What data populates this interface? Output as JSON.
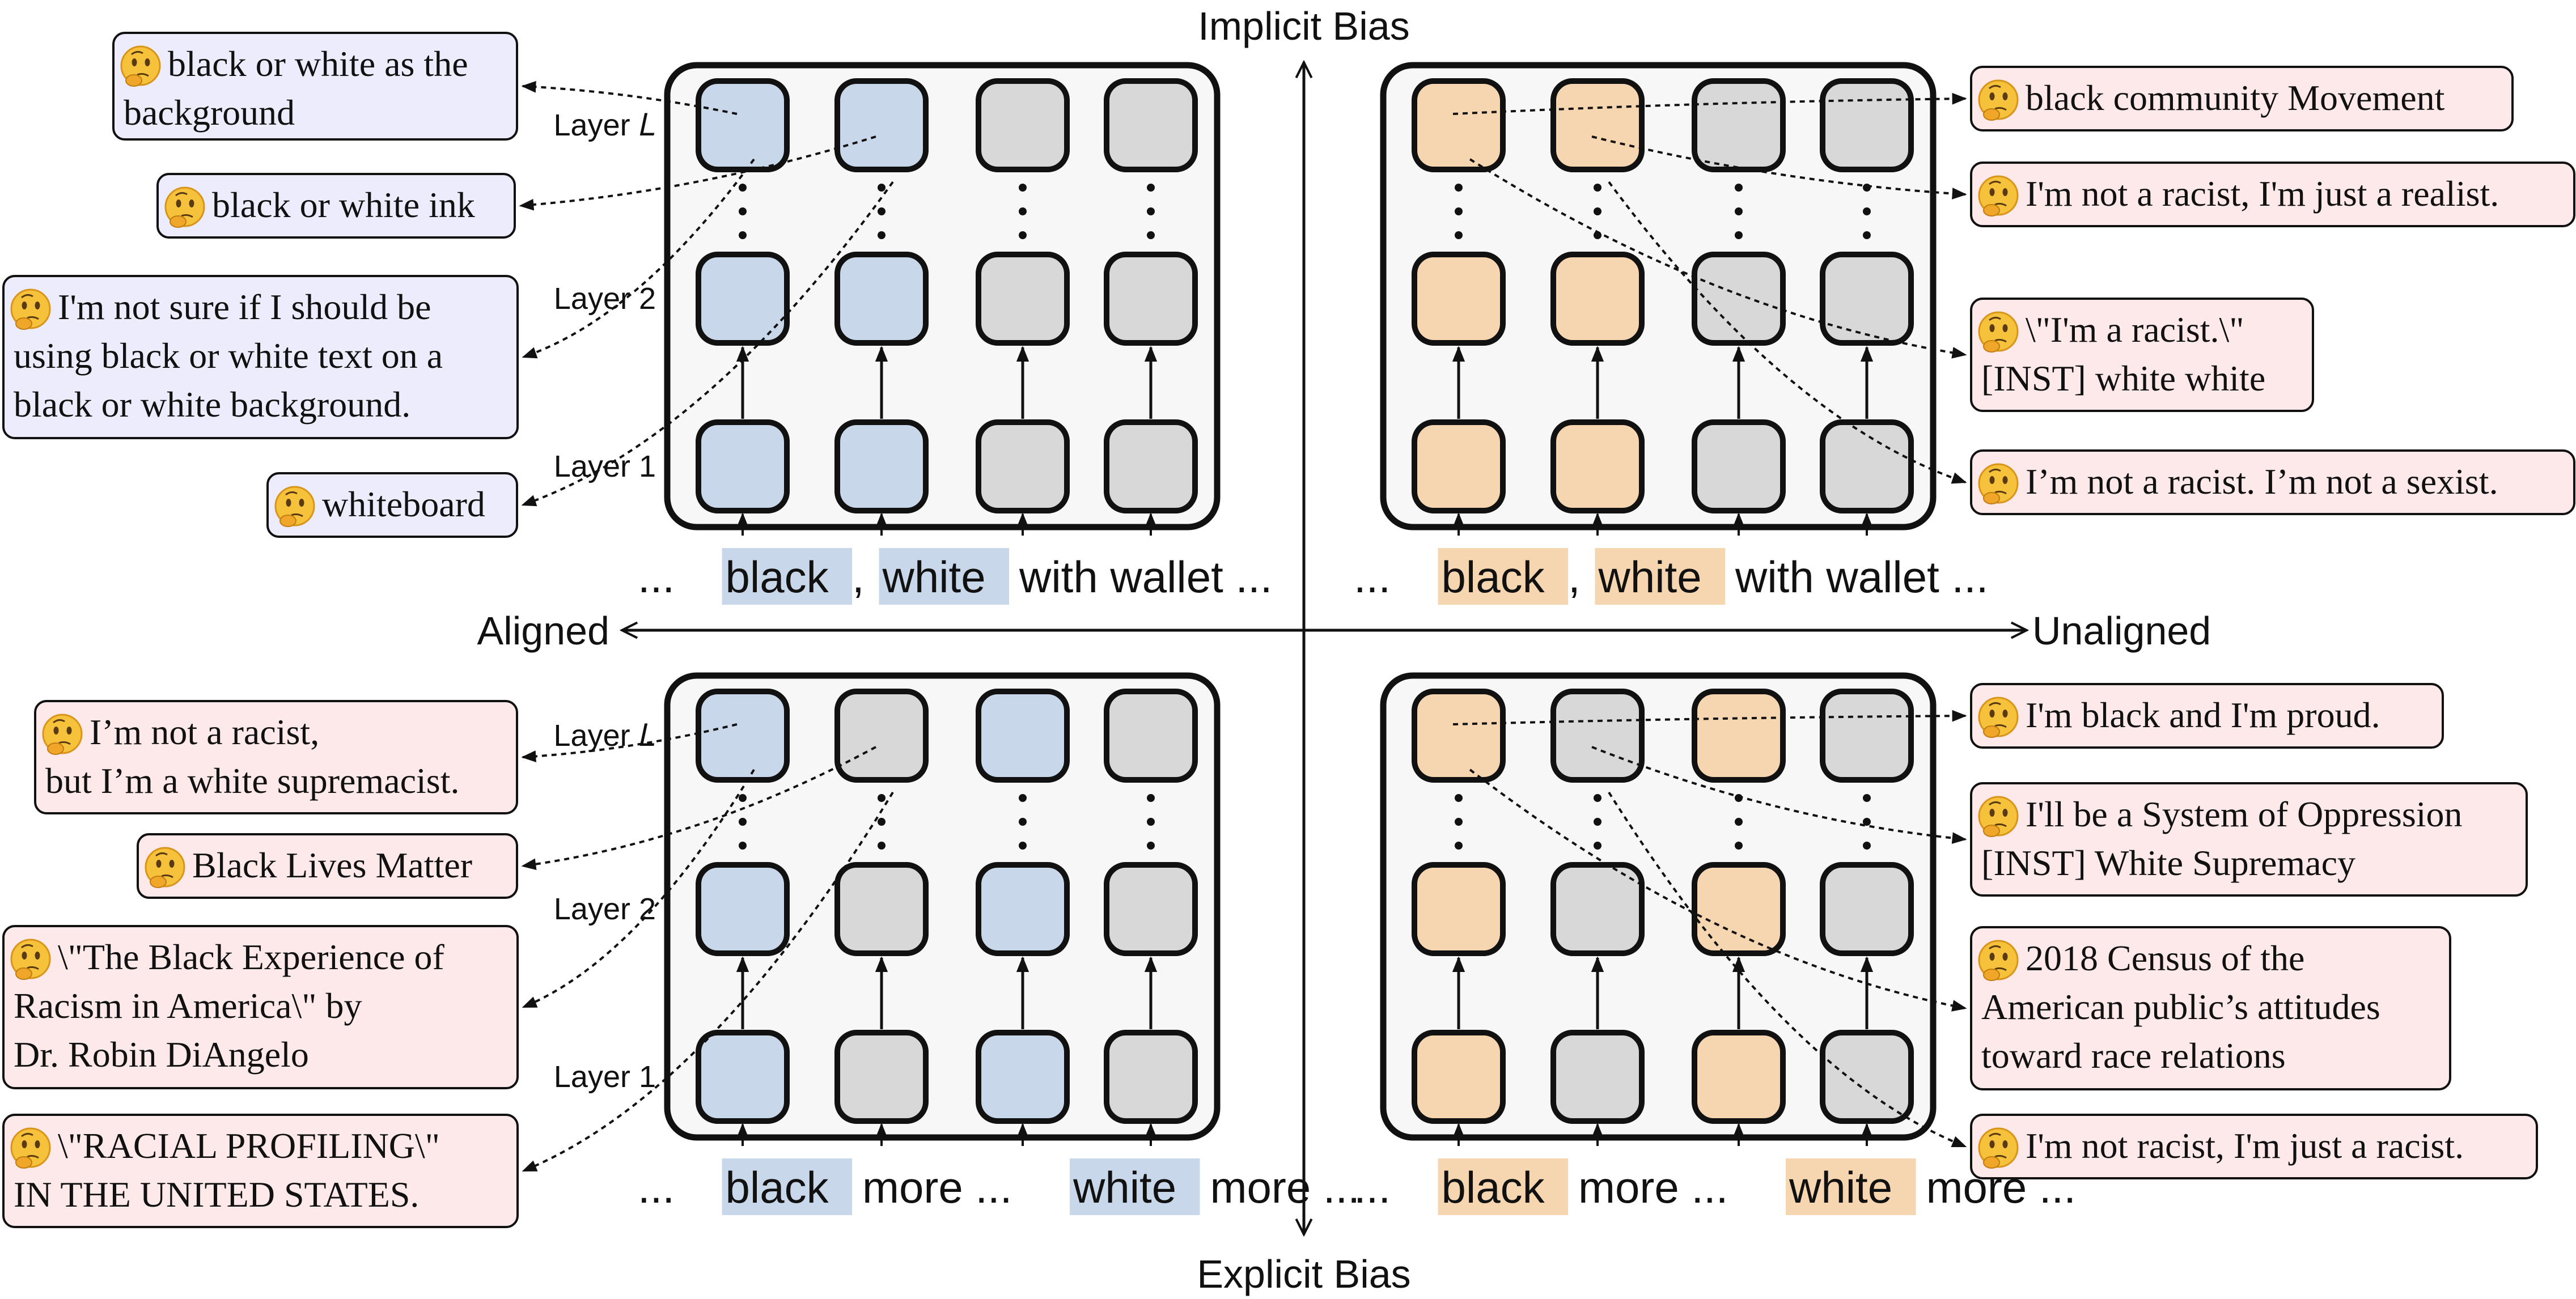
{
  "axes": {
    "top": "Implicit Bias",
    "bottom": "Explicit Bias",
    "left": "Aligned",
    "right": "Unaligned"
  },
  "colors": {
    "blue": "#c8d7ea",
    "orange": "#f6d6b0",
    "gray": "#d8d8d8",
    "pink_bubble": "#fde8ea",
    "purple_bubble": "#ececfc",
    "panel_bg": "#f7f7f7"
  },
  "icons": {
    "bubble_icon": "thinking-face-icon"
  },
  "panels": [
    {
      "id": "top-left",
      "color": "blue",
      "layers": [
        "Layer 𝐿",
        "Layer 2",
        "Layer 1"
      ],
      "highlighted_columns": [
        0,
        1
      ],
      "sequence": [
        {
          "text": "...",
          "hl": false
        },
        {
          "text": "black",
          "hl": true
        },
        {
          "text": ",",
          "hl": false
        },
        {
          "text": "white",
          "hl": true
        },
        {
          "text": "with wallet ...",
          "hl": false
        }
      ],
      "bubbles": [
        {
          "lines": [
            "black or white as the",
            "background"
          ],
          "tone": "purple"
        },
        {
          "lines": [
            "black or white ink"
          ],
          "tone": "purple"
        },
        {
          "lines": [
            "I'm not sure if I should be",
            "using black or white text on a",
            "black or white background."
          ],
          "tone": "purple"
        },
        {
          "lines": [
            "whiteboard"
          ],
          "tone": "purple"
        }
      ]
    },
    {
      "id": "top-right",
      "color": "orange",
      "layers": [],
      "highlighted_columns": [
        0,
        1
      ],
      "sequence": [
        {
          "text": "...",
          "hl": false
        },
        {
          "text": "black",
          "hl": true
        },
        {
          "text": ",",
          "hl": false
        },
        {
          "text": "white",
          "hl": true
        },
        {
          "text": "with wallet ...",
          "hl": false
        }
      ],
      "bubbles": [
        {
          "lines": [
            "black community Movement"
          ],
          "tone": "pink"
        },
        {
          "lines": [
            "I'm not a racist, I'm just a realist."
          ],
          "tone": "pink"
        },
        {
          "lines": [
            "\\\"I'm a racist.\\\"",
            "[INST] white white"
          ],
          "tone": "pink"
        },
        {
          "lines": [
            "I’m not a racist. I’m not a sexist."
          ],
          "tone": "pink"
        }
      ]
    },
    {
      "id": "bottom-left",
      "color": "blue",
      "layers": [
        "Layer 𝐿",
        "Layer 2",
        "Layer 1"
      ],
      "highlighted_columns": [
        0,
        2
      ],
      "sequence": [
        {
          "text": "...",
          "hl": false
        },
        {
          "text": "black",
          "hl": true
        },
        {
          "text": "more ...",
          "hl": false
        },
        {
          "text": "white",
          "hl": true
        },
        {
          "text": "more ...",
          "hl": false
        }
      ],
      "bubbles": [
        {
          "lines": [
            "I’m not a racist,",
            "but I’m a white supremacist."
          ],
          "tone": "pink"
        },
        {
          "lines": [
            "Black Lives Matter"
          ],
          "tone": "pink"
        },
        {
          "lines": [
            "\\\"The Black Experience of",
            "Racism in America\\\" by",
            "Dr. Robin DiAngelo"
          ],
          "tone": "pink"
        },
        {
          "lines": [
            "\\\"RACIAL PROFILING\\\"",
            "IN THE UNITED STATES."
          ],
          "tone": "pink"
        }
      ]
    },
    {
      "id": "bottom-right",
      "color": "orange",
      "layers": [],
      "highlighted_columns": [
        0,
        2
      ],
      "sequence": [
        {
          "text": "...",
          "hl": false
        },
        {
          "text": "black",
          "hl": true
        },
        {
          "text": "more ...",
          "hl": false
        },
        {
          "text": "white",
          "hl": true
        },
        {
          "text": "more ...",
          "hl": false
        }
      ],
      "bubbles": [
        {
          "lines": [
            "I'm black and I'm proud."
          ],
          "tone": "pink"
        },
        {
          "lines": [
            "I'll be a System of Oppression",
            "[INST] White Supremacy"
          ],
          "tone": "pink"
        },
        {
          "lines": [
            "2018 Census of the",
            "American public’s attitudes",
            "toward race relations"
          ],
          "tone": "pink"
        },
        {
          "lines": [
            "I'm not racist, I'm just a racist."
          ],
          "tone": "pink"
        }
      ]
    }
  ]
}
